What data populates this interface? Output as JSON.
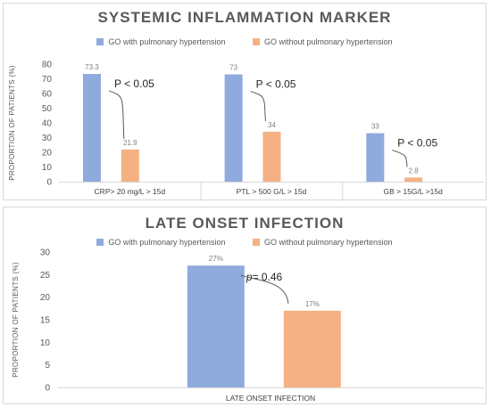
{
  "colors": {
    "with_ph": "#8faadc",
    "without_ph": "#f4b183",
    "axis": "#d9d9d9"
  },
  "chart_data": [
    {
      "type": "bar",
      "title": "SYSTEMIC INFLAMMATION MARKER",
      "ylabel": "PROPORTION OF PATIENTS (%)",
      "ylim": [
        0,
        80
      ],
      "yticks": [
        0,
        10,
        20,
        30,
        40,
        50,
        60,
        70,
        80
      ],
      "categories": [
        "CRP> 20 mg/L > 15d",
        "PTL > 500 G/L > 15d",
        "GB > 15G/L >15d"
      ],
      "series": [
        {
          "name": "GO with pulmonary hypertension",
          "values": [
            73.3,
            73,
            33
          ],
          "labels": [
            "73.3",
            "73",
            "33"
          ]
        },
        {
          "name": "GO without pulmonary hypertension",
          "values": [
            21.9,
            34,
            2.8
          ],
          "labels": [
            "21.9",
            "34",
            "2.8"
          ]
        }
      ],
      "annotations": [
        "P < 0.05",
        "P < 0.05",
        "P < 0.05"
      ],
      "legend_position": "top",
      "grid": false
    },
    {
      "type": "bar",
      "title": "LATE ONSET INFECTION",
      "ylabel": "PROPORTION OF PATIENTS (%)",
      "ylim": [
        0,
        30
      ],
      "yticks": [
        0,
        5,
        10,
        15,
        20,
        25,
        30
      ],
      "categories": [
        "LATE ONSET INFECTION"
      ],
      "series": [
        {
          "name": "GO with pulmonary hypertension",
          "values": [
            27
          ],
          "labels": [
            "27%"
          ]
        },
        {
          "name": "GO without pulmonary hypertension",
          "values": [
            17
          ],
          "labels": [
            "17%"
          ]
        }
      ],
      "annotations": [
        {
          "italic": "p",
          "rest": "= 0.46"
        }
      ],
      "legend_position": "top",
      "grid": false
    }
  ]
}
